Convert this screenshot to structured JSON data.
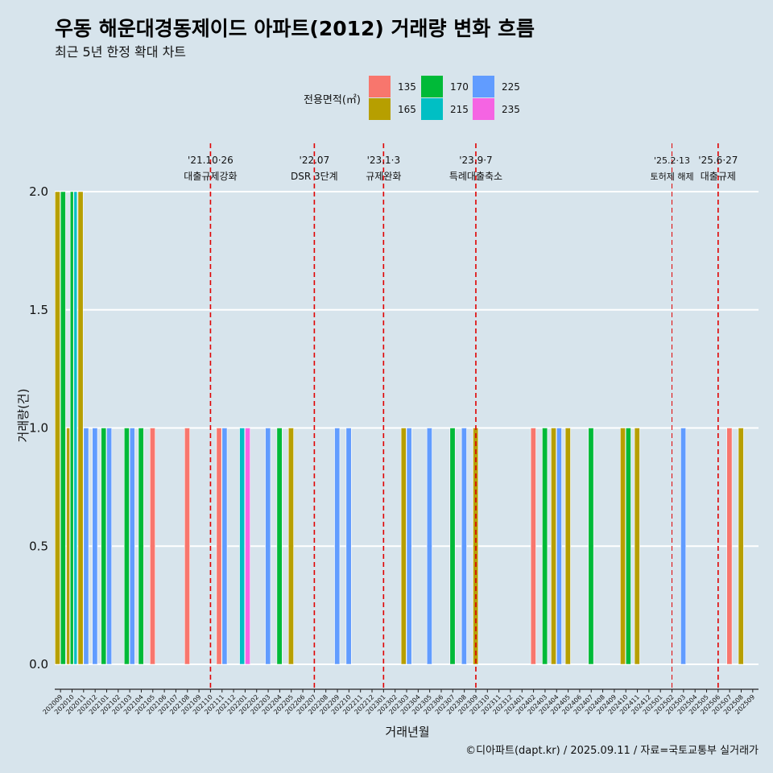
{
  "chart_data": {
    "type": "bar",
    "title": "우동 해운대경동제이드 아파트(2012) 거래량 변화 흐름",
    "subtitle": "최근 5년 한정 확대 차트",
    "xlabel": "거래년월",
    "ylabel": "거래량(건)",
    "caption": "©디아파트(dapt.kr) / 2025.09.11 / 자료=국토교통부 실거래가",
    "ylim": [
      0,
      2
    ],
    "yticks": [
      "0.0",
      "0.5",
      "1.0",
      "1.5",
      "2.0"
    ],
    "legend": {
      "title": "전용면적(㎡)",
      "position": "top",
      "items": [
        {
          "label": "135",
          "color": "#F8766D"
        },
        {
          "label": "165",
          "color": "#B79F00"
        },
        {
          "label": "170",
          "color": "#00BA38"
        },
        {
          "label": "215",
          "color": "#00BFC4"
        },
        {
          "label": "225",
          "color": "#619CFF"
        },
        {
          "label": "235",
          "color": "#F564E3"
        }
      ]
    },
    "categories": [
      "202009",
      "202010",
      "202011",
      "202012",
      "202101",
      "202102",
      "202103",
      "202104",
      "202105",
      "202106",
      "202107",
      "202108",
      "202109",
      "202110",
      "202111",
      "202112",
      "202201",
      "202202",
      "202203",
      "202204",
      "202205",
      "202206",
      "202207",
      "202208",
      "202209",
      "202210",
      "202211",
      "202212",
      "202301",
      "202302",
      "202303",
      "202304",
      "202305",
      "202306",
      "202307",
      "202308",
      "202309",
      "202310",
      "202311",
      "202312",
      "202401",
      "202402",
      "202403",
      "202404",
      "202405",
      "202406",
      "202407",
      "202408",
      "202409",
      "202410",
      "202411",
      "202412",
      "202501",
      "202502",
      "202503",
      "202504",
      "202505",
      "202506",
      "202507",
      "202508",
      "202509"
    ],
    "bars": [
      {
        "month": "202009",
        "values": [
          {
            "area": "165",
            "count": 2
          },
          {
            "area": "170",
            "count": 2
          }
        ]
      },
      {
        "month": "202010",
        "values": [
          {
            "area": "165",
            "count": 1
          },
          {
            "area": "170",
            "count": 2
          },
          {
            "area": "215",
            "count": 2
          }
        ]
      },
      {
        "month": "202011",
        "values": [
          {
            "area": "165",
            "count": 2
          },
          {
            "area": "225",
            "count": 1
          }
        ]
      },
      {
        "month": "202012",
        "values": [
          {
            "area": "225",
            "count": 1
          }
        ]
      },
      {
        "month": "202101",
        "values": [
          {
            "area": "170",
            "count": 1
          },
          {
            "area": "225",
            "count": 1
          }
        ]
      },
      {
        "month": "202103",
        "values": [
          {
            "area": "170",
            "count": 1
          },
          {
            "area": "225",
            "count": 1
          }
        ]
      },
      {
        "month": "202104",
        "values": [
          {
            "area": "170",
            "count": 1
          }
        ]
      },
      {
        "month": "202105",
        "values": [
          {
            "area": "135",
            "count": 1
          }
        ]
      },
      {
        "month": "202108",
        "values": [
          {
            "area": "135",
            "count": 1
          }
        ]
      },
      {
        "month": "202111",
        "values": [
          {
            "area": "135",
            "count": 1
          },
          {
            "area": "225",
            "count": 1
          }
        ]
      },
      {
        "month": "202201",
        "values": [
          {
            "area": "215",
            "count": 1
          },
          {
            "area": "235",
            "count": 1
          }
        ]
      },
      {
        "month": "202203",
        "values": [
          {
            "area": "225",
            "count": 1
          }
        ]
      },
      {
        "month": "202204",
        "values": [
          {
            "area": "170",
            "count": 1
          }
        ]
      },
      {
        "month": "202205",
        "values": [
          {
            "area": "165",
            "count": 1
          }
        ]
      },
      {
        "month": "202209",
        "values": [
          {
            "area": "225",
            "count": 1
          }
        ]
      },
      {
        "month": "202210",
        "values": [
          {
            "area": "225",
            "count": 1
          }
        ]
      },
      {
        "month": "202303",
        "values": [
          {
            "area": "165",
            "count": 1
          },
          {
            "area": "225",
            "count": 1
          }
        ]
      },
      {
        "month": "202305",
        "values": [
          {
            "area": "225",
            "count": 1
          }
        ]
      },
      {
        "month": "202307",
        "values": [
          {
            "area": "170",
            "count": 1
          }
        ]
      },
      {
        "month": "202308",
        "values": [
          {
            "area": "225",
            "count": 1
          }
        ]
      },
      {
        "month": "202309",
        "values": [
          {
            "area": "165",
            "count": 1
          }
        ]
      },
      {
        "month": "202402",
        "values": [
          {
            "area": "135",
            "count": 1
          }
        ]
      },
      {
        "month": "202403",
        "values": [
          {
            "area": "170",
            "count": 1
          }
        ]
      },
      {
        "month": "202404",
        "values": [
          {
            "area": "165",
            "count": 1
          },
          {
            "area": "225",
            "count": 1
          }
        ]
      },
      {
        "month": "202405",
        "values": [
          {
            "area": "165",
            "count": 1
          }
        ]
      },
      {
        "month": "202407",
        "values": [
          {
            "area": "170",
            "count": 1
          }
        ]
      },
      {
        "month": "202410",
        "values": [
          {
            "area": "165",
            "count": 1
          },
          {
            "area": "170",
            "count": 1
          }
        ]
      },
      {
        "month": "202411",
        "values": [
          {
            "area": "165",
            "count": 1
          }
        ]
      },
      {
        "month": "202503",
        "values": [
          {
            "area": "225",
            "count": 1
          }
        ]
      },
      {
        "month": "202507",
        "values": [
          {
            "area": "135",
            "count": 1
          }
        ]
      },
      {
        "month": "202508",
        "values": [
          {
            "area": "165",
            "count": 1
          }
        ]
      }
    ],
    "events": [
      {
        "month": "202110",
        "date": "'21.10·26",
        "label": "대출규제강화",
        "style": "thick"
      },
      {
        "month": "202207",
        "date": "'22.07",
        "label": "DSR 3단계",
        "style": "thick"
      },
      {
        "month": "202301",
        "date": "'23.1·3",
        "label": "규제완화",
        "style": "thick"
      },
      {
        "month": "202309",
        "date": "'23.9·7",
        "label": "특례대출축소",
        "style": "thick"
      },
      {
        "month": "202502",
        "date": "'25.2·13",
        "label": "토허제 해제",
        "style": "thin"
      },
      {
        "month": "202506",
        "date": "'25.6·27",
        "label": "대출규제",
        "style": "thick"
      }
    ]
  }
}
